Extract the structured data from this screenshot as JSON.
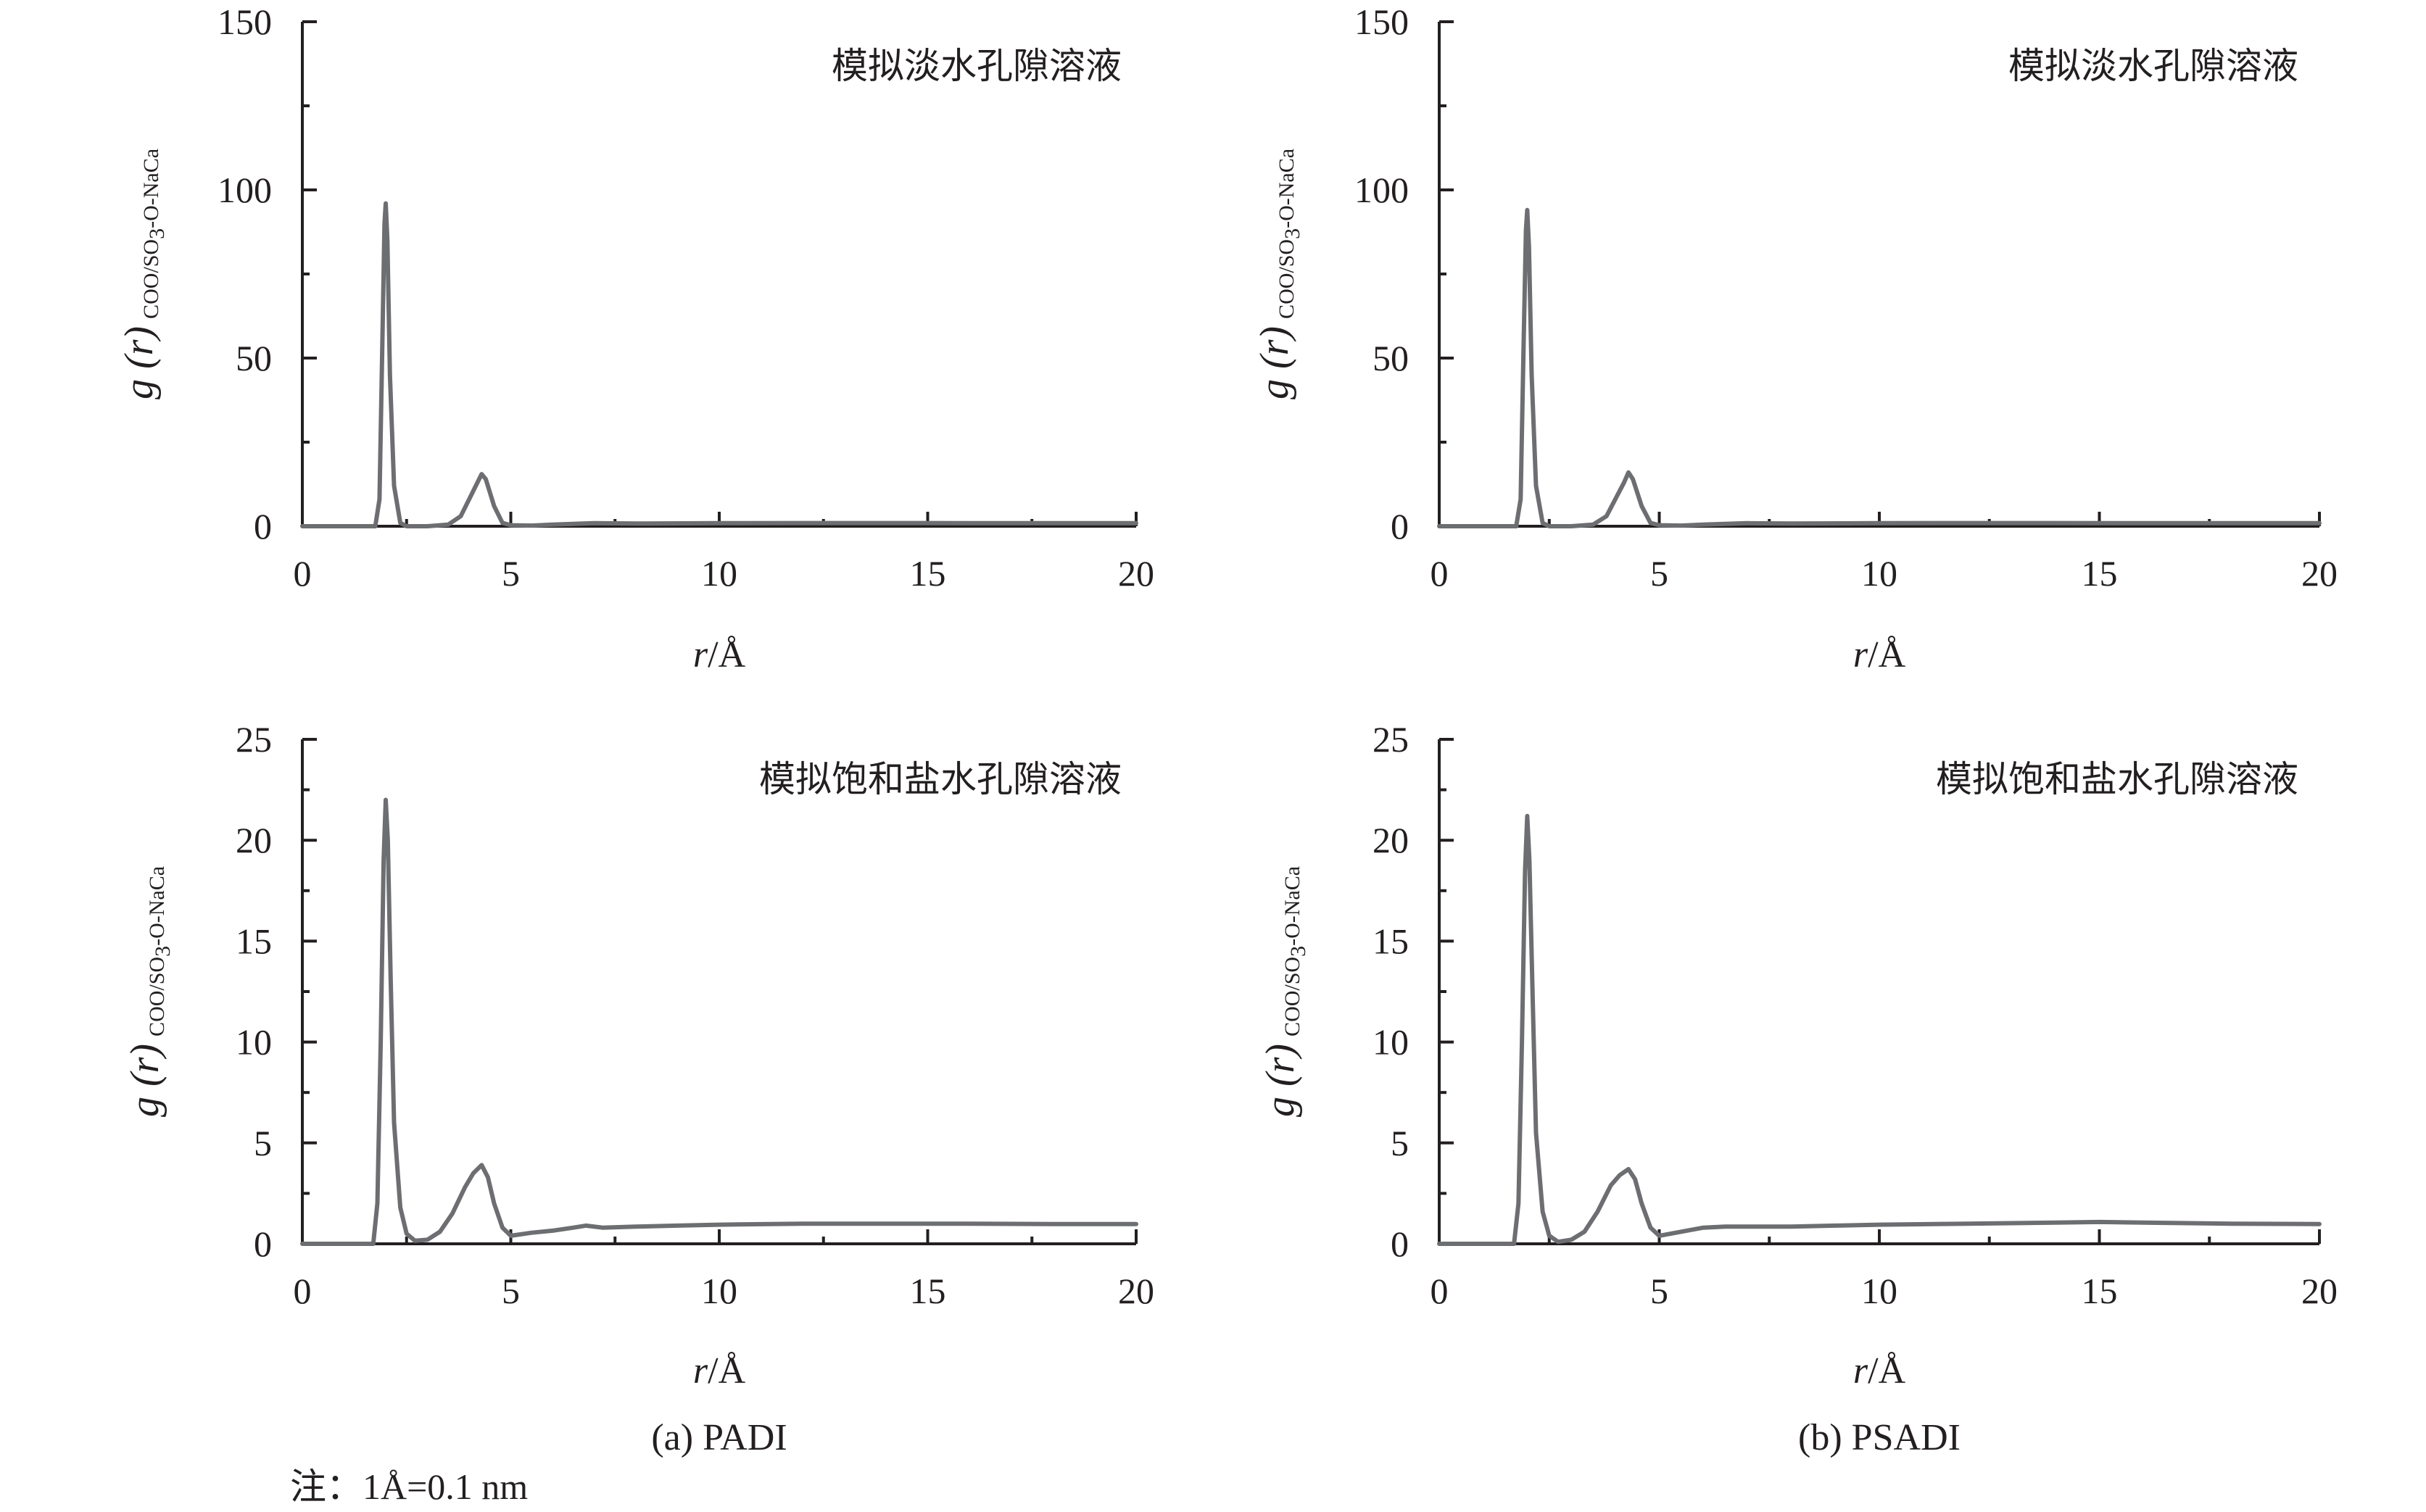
{
  "chart_data": [
    {
      "panel": "a-top",
      "type": "line",
      "annotation": "模拟淡水孔隙溶液",
      "xlabel": "r/Å",
      "ylabel": "g (r) COO/SO3-O-NaCa",
      "xlim": [
        0,
        20
      ],
      "ylim": [
        0,
        150
      ],
      "x_ticks": [
        0,
        5,
        10,
        15,
        20
      ],
      "y_ticks": [
        0,
        50,
        100,
        150
      ],
      "x_minor_step": 2.5,
      "y_minor_step": 25,
      "grid": false,
      "series": [
        {
          "x": [
            0,
            1.75,
            1.85,
            1.92,
            1.97,
            2.0,
            2.04,
            2.1,
            2.2,
            2.35,
            2.5,
            3.0,
            3.5,
            3.8,
            4.0,
            4.2,
            4.3,
            4.4,
            4.6,
            4.8,
            5.0,
            5.5,
            6.0,
            7.0,
            8.0,
            10.0,
            12.0,
            14.0,
            16.0,
            18.0,
            20.0
          ],
          "y": [
            0,
            0,
            8,
            55,
            90,
            96,
            85,
            45,
            12,
            1,
            0,
            0,
            0.5,
            3,
            8,
            13,
            15.5,
            14,
            6,
            1,
            0.3,
            0.2,
            0.5,
            0.9,
            0.8,
            0.9,
            0.95,
            0.95,
            0.9,
            0.9,
            0.9
          ]
        }
      ]
    },
    {
      "panel": "a-bottom",
      "type": "line",
      "annotation": "模拟饱和盐水孔隙溶液",
      "xlabel": "r/Å",
      "ylabel": "g (r) COO/SO3-O-NaCa",
      "xlim": [
        0,
        20
      ],
      "ylim": [
        0,
        25
      ],
      "x_ticks": [
        0,
        5,
        10,
        15,
        20
      ],
      "y_ticks": [
        0,
        5,
        10,
        15,
        20,
        25
      ],
      "x_minor_step": 2.5,
      "y_minor_step": 2.5,
      "grid": false,
      "series": [
        {
          "x": [
            0,
            1.7,
            1.8,
            1.88,
            1.95,
            2.0,
            2.05,
            2.12,
            2.2,
            2.35,
            2.5,
            2.7,
            3.0,
            3.3,
            3.6,
            3.9,
            4.1,
            4.3,
            4.45,
            4.6,
            4.8,
            5.0,
            5.5,
            6.0,
            6.5,
            6.8,
            7.2,
            8.0,
            9.0,
            10.0,
            12.0,
            14.0,
            16.0,
            18.0,
            20.0
          ],
          "y": [
            0,
            0,
            2,
            10,
            19,
            22,
            20,
            13,
            6,
            1.8,
            0.5,
            0.15,
            0.2,
            0.6,
            1.5,
            2.8,
            3.5,
            3.9,
            3.3,
            2.0,
            0.8,
            0.4,
            0.55,
            0.65,
            0.8,
            0.9,
            0.8,
            0.85,
            0.9,
            0.95,
            1.0,
            1.0,
            1.0,
            0.98,
            0.98
          ]
        }
      ]
    },
    {
      "panel": "b-top",
      "type": "line",
      "annotation": "模拟淡水孔隙溶液",
      "xlabel": "r/Å",
      "ylabel": "g (r) COO/SO3-O-NaCa",
      "xlim": [
        0,
        20
      ],
      "ylim": [
        0,
        150
      ],
      "x_ticks": [
        0,
        5,
        10,
        15,
        20
      ],
      "y_ticks": [
        0,
        50,
        100,
        150
      ],
      "x_minor_step": 2.5,
      "y_minor_step": 25,
      "grid": false,
      "series": [
        {
          "x": [
            0,
            1.75,
            1.85,
            1.92,
            1.97,
            2.0,
            2.04,
            2.1,
            2.2,
            2.35,
            2.5,
            3.0,
            3.5,
            3.8,
            4.0,
            4.2,
            4.3,
            4.4,
            4.6,
            4.8,
            5.0,
            5.5,
            6.0,
            7.0,
            8.0,
            10.0,
            12.0,
            14.0,
            16.0,
            18.0,
            20.0
          ],
          "y": [
            0,
            0,
            8,
            55,
            88,
            94,
            83,
            45,
            12,
            1,
            0,
            0,
            0.5,
            3,
            8,
            13,
            16,
            14,
            6,
            1,
            0.3,
            0.2,
            0.5,
            0.9,
            0.8,
            0.9,
            0.95,
            0.95,
            0.9,
            0.9,
            0.9
          ]
        }
      ]
    },
    {
      "panel": "b-bottom",
      "type": "line",
      "annotation": "模拟饱和盐水孔隙溶液",
      "xlabel": "r/Å",
      "ylabel": "g (r) COO/SO3-O-NaCa",
      "xlim": [
        0,
        20
      ],
      "ylim": [
        0,
        25
      ],
      "x_ticks": [
        0,
        5,
        10,
        15,
        20
      ],
      "y_ticks": [
        0,
        5,
        10,
        15,
        20,
        25
      ],
      "x_minor_step": 2.5,
      "y_minor_step": 2.5,
      "grid": false,
      "series": [
        {
          "x": [
            0,
            1.7,
            1.8,
            1.88,
            1.95,
            2.0,
            2.05,
            2.12,
            2.2,
            2.35,
            2.5,
            2.7,
            3.0,
            3.3,
            3.6,
            3.9,
            4.1,
            4.3,
            4.45,
            4.6,
            4.8,
            5.0,
            5.5,
            6.0,
            6.5,
            7.0,
            8.0,
            9.0,
            10.0,
            12.0,
            14.0,
            15.0,
            16.0,
            18.0,
            20.0
          ],
          "y": [
            0,
            0,
            2,
            10,
            18.5,
            21.2,
            19,
            12.5,
            5.5,
            1.6,
            0.4,
            0.1,
            0.2,
            0.6,
            1.6,
            2.9,
            3.4,
            3.7,
            3.2,
            2.0,
            0.8,
            0.4,
            0.6,
            0.8,
            0.85,
            0.85,
            0.85,
            0.9,
            0.95,
            1.0,
            1.05,
            1.08,
            1.05,
            1.0,
            0.98
          ]
        }
      ]
    }
  ],
  "captions": {
    "a": "(a) PADI",
    "b": "(b) PSADI"
  },
  "note": "注：1Å=0.1 nm"
}
